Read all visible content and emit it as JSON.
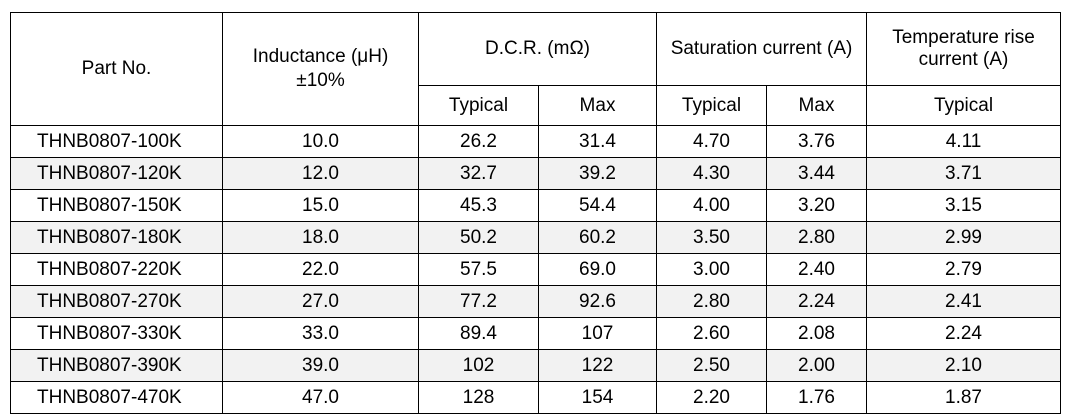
{
  "table": {
    "headers": {
      "part_no": "Part No.",
      "inductance_label": "Inductance (μH)",
      "inductance_tol": "±10%",
      "dcr": "D.C.R. (mΩ)",
      "saturation": "Saturation current (A)",
      "temp_rise": "Temperature rise current (A)",
      "dcr_typ": "Typical",
      "dcr_max": "Max",
      "sat_typ": "Typical",
      "sat_max": "Max",
      "temp_typ": "Typical"
    },
    "rows": [
      {
        "part": "THNB0807-100K",
        "inductance": "10.0",
        "dcr_typ": "26.2",
        "dcr_max": "31.4",
        "sat_typ": "4.70",
        "sat_max": "3.76",
        "temp_typ": "4.11"
      },
      {
        "part": "THNB0807-120K",
        "inductance": "12.0",
        "dcr_typ": "32.7",
        "dcr_max": "39.2",
        "sat_typ": "4.30",
        "sat_max": "3.44",
        "temp_typ": "3.71"
      },
      {
        "part": "THNB0807-150K",
        "inductance": "15.0",
        "dcr_typ": "45.3",
        "dcr_max": "54.4",
        "sat_typ": "4.00",
        "sat_max": "3.20",
        "temp_typ": "3.15"
      },
      {
        "part": "THNB0807-180K",
        "inductance": "18.0",
        "dcr_typ": "50.2",
        "dcr_max": "60.2",
        "sat_typ": "3.50",
        "sat_max": "2.80",
        "temp_typ": "2.99"
      },
      {
        "part": "THNB0807-220K",
        "inductance": "22.0",
        "dcr_typ": "57.5",
        "dcr_max": "69.0",
        "sat_typ": "3.00",
        "sat_max": "2.40",
        "temp_typ": "2.79"
      },
      {
        "part": "THNB0807-270K",
        "inductance": "27.0",
        "dcr_typ": "77.2",
        "dcr_max": "92.6",
        "sat_typ": "2.80",
        "sat_max": "2.24",
        "temp_typ": "2.41"
      },
      {
        "part": "THNB0807-330K",
        "inductance": "33.0",
        "dcr_typ": "89.4",
        "dcr_max": "107",
        "sat_typ": "2.60",
        "sat_max": "2.08",
        "temp_typ": "2.24"
      },
      {
        "part": "THNB0807-390K",
        "inductance": "39.0",
        "dcr_typ": "102",
        "dcr_max": "122",
        "sat_typ": "2.50",
        "sat_max": "2.00",
        "temp_typ": "2.10"
      },
      {
        "part": "THNB0807-470K",
        "inductance": "47.0",
        "dcr_typ": "128",
        "dcr_max": "154",
        "sat_typ": "2.20",
        "sat_max": "1.76",
        "temp_typ": "1.87"
      }
    ]
  },
  "colors": {
    "border": "#000000",
    "shaded_row": "#f2f2f2",
    "background": "#ffffff"
  }
}
